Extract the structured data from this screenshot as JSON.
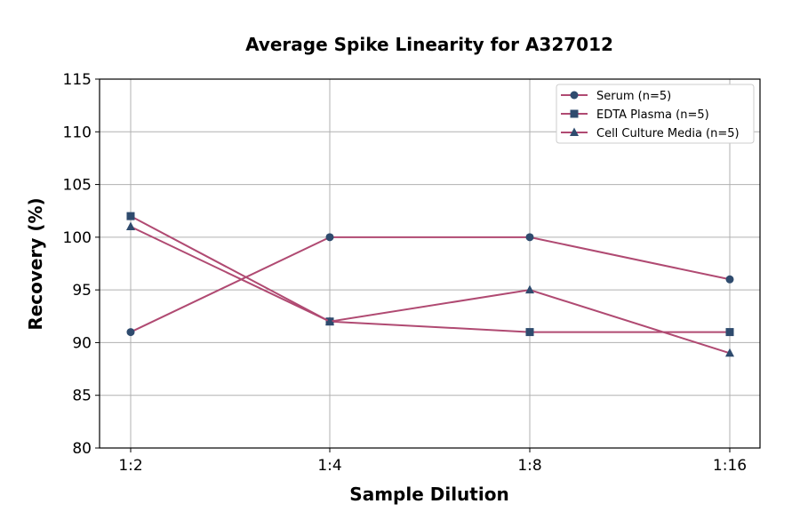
{
  "chart_data": {
    "type": "line",
    "title": "Average Spike Linearity for A327012",
    "xlabel": "Sample Dilution",
    "ylabel": "Recovery (%)",
    "categories": [
      "1:2",
      "1:4",
      "1:8",
      "1:16"
    ],
    "ylim": [
      80,
      115
    ],
    "yticks": [
      80,
      85,
      90,
      95,
      100,
      105,
      110,
      115
    ],
    "grid": true,
    "legend_position": "top-right",
    "line_color": "#b04a72",
    "marker_color": "#2f4b6e",
    "series": [
      {
        "name": "Serum (n=5)",
        "marker": "circle",
        "values": [
          91,
          100,
          100,
          96
        ]
      },
      {
        "name": "EDTA Plasma (n=5)",
        "marker": "square",
        "values": [
          102,
          92,
          91,
          91
        ]
      },
      {
        "name": "Cell Culture Media (n=5)",
        "marker": "triangle",
        "values": [
          101,
          92,
          95,
          89
        ]
      }
    ]
  }
}
